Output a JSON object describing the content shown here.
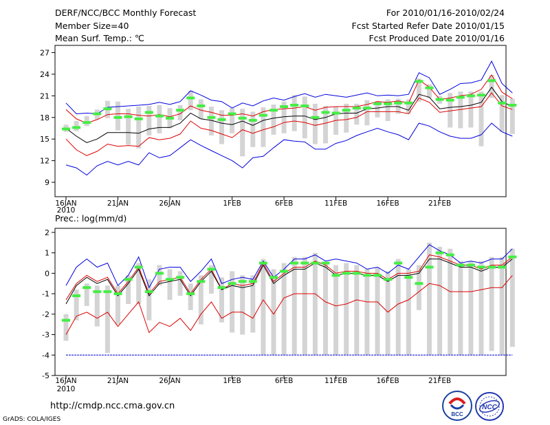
{
  "header": {
    "title": "DERF/NCC/BCC Monthly Forecast",
    "member_size": "Member Size=40",
    "variable": "Mean Surf. Temp.: ℃",
    "period": "For 2010/01/16-2010/02/24",
    "started": "Fcst Started Refer Date 2010/01/15",
    "produced": "Fcst Produced Date 2010/01/16"
  },
  "footer": {
    "url": "http://cmdp.ncc.cma.gov.cn",
    "grads": "GrADS: COLA/IGES"
  },
  "logos": {
    "bcc": "BCC",
    "ncc": "NCC"
  },
  "colors": {
    "envelope": "#0000dd",
    "percentile": "#dd0000",
    "mean": "#000000",
    "bar": "#d4d4d4",
    "marker": "#44ee44"
  },
  "chart_data": [
    {
      "type": "line",
      "title": "Mean Surf. Temp.: ℃",
      "xlabel": "",
      "ylabel": "",
      "x_ticks": [
        "16JAN",
        "21JAN",
        "26JAN",
        "1FEB",
        "6FEB",
        "11FEB",
        "16FEB",
        "21FEB"
      ],
      "x_year": "2010",
      "y_ticks": [
        9,
        12,
        15,
        18,
        21,
        24,
        27
      ],
      "ylim": [
        7,
        28
      ],
      "series": [
        {
          "name": "max",
          "values": [
            20.0,
            18.5,
            18.6,
            18.5,
            19.4,
            19.5,
            19.6,
            19.7,
            19.8,
            20.1,
            19.8,
            20.2,
            21.7,
            21.1,
            20.4,
            20.2,
            19.3,
            20.0,
            19.6,
            20.3,
            20.7,
            20.4,
            20.9,
            21.3,
            20.8,
            21.2,
            21.0,
            20.8,
            21.1,
            21.4,
            21.0,
            21.1,
            21.0,
            21.2,
            24.2,
            23.5,
            21.2,
            21.9,
            22.7,
            22.8,
            23.2,
            25.8,
            22.7,
            21.4
          ]
        },
        {
          "name": "p90",
          "values": [
            19.1,
            17.8,
            17.2,
            17.7,
            18.4,
            18.5,
            18.5,
            18.3,
            18.2,
            18.4,
            18.1,
            18.5,
            19.6,
            19.0,
            18.7,
            18.3,
            18.3,
            18.5,
            18.2,
            18.8,
            19.1,
            19.2,
            19.3,
            19.5,
            19.0,
            19.4,
            19.5,
            19.5,
            19.5,
            19.8,
            20.2,
            20.1,
            20.3,
            20.0,
            23.2,
            22.2,
            20.5,
            20.7,
            21.0,
            21.2,
            21.9,
            23.9,
            21.5,
            20.6
          ]
        },
        {
          "name": "mean",
          "values": [
            16.5,
            15.4,
            14.5,
            15.0,
            15.9,
            15.9,
            15.9,
            15.8,
            16.4,
            16.6,
            16.6,
            17.2,
            18.6,
            17.8,
            17.6,
            17.2,
            17.0,
            17.5,
            16.9,
            17.6,
            17.9,
            18.1,
            18.2,
            18.2,
            17.7,
            18.0,
            18.5,
            18.6,
            18.6,
            19.2,
            19.3,
            19.5,
            19.5,
            19.0,
            21.2,
            20.8,
            19.2,
            19.4,
            19.5,
            19.7,
            20.1,
            22.2,
            20.2,
            19.5
          ]
        },
        {
          "name": "p10",
          "values": [
            15.0,
            13.5,
            12.7,
            13.3,
            14.3,
            14.0,
            14.1,
            14.0,
            15.2,
            14.9,
            15.1,
            15.7,
            17.5,
            16.5,
            16.2,
            15.7,
            15.2,
            16.3,
            15.8,
            16.3,
            16.7,
            17.3,
            17.5,
            17.3,
            16.9,
            17.2,
            17.6,
            17.7,
            18.0,
            18.8,
            18.8,
            18.8,
            18.8,
            18.5,
            20.7,
            20.1,
            18.7,
            18.9,
            19.1,
            19.3,
            19.5,
            21.4,
            19.6,
            19.1
          ]
        },
        {
          "name": "min",
          "values": [
            11.4,
            11.0,
            10.0,
            11.3,
            11.9,
            11.4,
            11.9,
            11.4,
            13.1,
            12.4,
            12.7,
            13.8,
            14.9,
            14.1,
            13.4,
            12.7,
            12.0,
            11.0,
            12.4,
            12.6,
            13.8,
            14.9,
            14.7,
            14.6,
            13.6,
            13.6,
            14.4,
            14.8,
            15.5,
            16.0,
            16.5,
            16.0,
            15.6,
            14.9,
            17.2,
            16.8,
            16.0,
            15.4,
            15.1,
            15.1,
            15.6,
            17.2,
            16.0,
            15.4
          ]
        },
        {
          "name": "observed",
          "values": [
            16.4,
            16.6,
            17.3,
            18.5,
            19.2,
            18.0,
            18.1,
            17.8,
            18.7,
            18.2,
            17.9,
            19.0,
            20.7,
            19.6,
            18.0,
            17.7,
            18.5,
            17.9,
            17.6,
            18.3,
            19.0,
            19.5,
            19.7,
            19.6,
            18.0,
            18.7,
            18.6,
            19.0,
            19.3,
            19.3,
            19.9,
            19.9,
            20.0,
            20.0,
            23.0,
            22.1,
            20.5,
            20.4,
            20.8,
            21.0,
            21.1,
            23.1,
            20.0,
            19.7
          ]
        }
      ],
      "bars_low": [
        16.0,
        16.1,
        16.8,
        17.7,
        17.9,
        16.2,
        14.2,
        13.7,
        15.5,
        15.8,
        16.5,
        17.6,
        19.0,
        17.8,
        15.5,
        14.3,
        15.8,
        12.6,
        13.9,
        13.9,
        15.6,
        15.8,
        16.1,
        15.1,
        14.3,
        14.4,
        15.6,
        15.9,
        17.0,
        16.9,
        18.0,
        17.5,
        18.5,
        18.5,
        20.2,
        20.7,
        19.9,
        16.6,
        16.5,
        16.6,
        14.0,
        20.7,
        16.0,
        15.7
      ],
      "bars_high": [
        17.0,
        17.5,
        18.2,
        19.1,
        20.3,
        20.2,
        19.2,
        19.5,
        19.6,
        19.7,
        19.3,
        19.7,
        21.7,
        20.5,
        19.5,
        19.0,
        19.3,
        19.2,
        18.8,
        19.4,
        19.8,
        20.2,
        21.1,
        20.9,
        19.9,
        19.6,
        19.5,
        19.9,
        19.9,
        20.4,
        20.3,
        20.5,
        20.6,
        20.5,
        23.4,
        22.6,
        21.0,
        21.4,
        21.6,
        21.6,
        21.6,
        23.9,
        21.1,
        20.6
      ]
    },
    {
      "type": "line",
      "title": "Prec.: log(mm/d)",
      "xlabel": "",
      "ylabel": "",
      "x_ticks": [
        "16JAN",
        "21JAN",
        "26JAN",
        "1FEB",
        "6FEB",
        "11FEB",
        "16FEB",
        "21FEB"
      ],
      "x_year": "2010",
      "y_ticks": [
        -5,
        -4,
        -3,
        -2,
        -1,
        0,
        1,
        2
      ],
      "ylim": [
        -5,
        2.2
      ],
      "series": [
        {
          "name": "max",
          "values": [
            -0.6,
            0.3,
            0.7,
            0.3,
            0.5,
            -0.6,
            -0.1,
            0.8,
            -0.7,
            0.2,
            0.3,
            0.3,
            -0.4,
            0.1,
            0.7,
            -0.5,
            -0.3,
            -0.2,
            -0.3,
            0.6,
            -0.2,
            0.2,
            0.7,
            0.7,
            0.9,
            0.6,
            0.7,
            0.6,
            0.5,
            0.2,
            0.3,
            0.0,
            0.4,
            0.2,
            0.8,
            1.4,
            1.1,
            0.9,
            0.5,
            0.6,
            0.5,
            0.7,
            0.7,
            1.2
          ]
        },
        {
          "name": "p90",
          "values": [
            -1.3,
            -0.5,
            -0.1,
            -0.4,
            -0.2,
            -1.0,
            -0.4,
            0.3,
            -1.0,
            -0.4,
            -0.3,
            -0.2,
            -1.0,
            -0.3,
            0.2,
            -0.8,
            -0.5,
            -0.6,
            -0.5,
            0.5,
            -0.4,
            0.0,
            0.3,
            0.3,
            0.6,
            0.4,
            0.0,
            0.1,
            0.1,
            0.0,
            0.0,
            -0.3,
            0.0,
            0.0,
            0.1,
            0.9,
            0.8,
            0.6,
            0.4,
            0.4,
            0.2,
            0.4,
            0.4,
            0.8
          ]
        },
        {
          "name": "mean",
          "values": [
            -1.5,
            -0.6,
            -0.2,
            -0.5,
            -0.3,
            -1.1,
            -0.5,
            0.2,
            -1.1,
            -0.5,
            -0.4,
            -0.3,
            -1.1,
            -0.4,
            0.1,
            -0.8,
            -0.6,
            -0.7,
            -0.6,
            0.4,
            -0.5,
            -0.1,
            0.2,
            0.2,
            0.5,
            0.3,
            -0.1,
            0.0,
            0.0,
            -0.1,
            -0.1,
            -0.4,
            -0.1,
            -0.1,
            0.0,
            0.7,
            0.7,
            0.5,
            0.3,
            0.3,
            0.1,
            0.3,
            0.3,
            0.7
          ]
        },
        {
          "name": "p10",
          "values": [
            -3.0,
            -2.1,
            -1.9,
            -2.2,
            -1.9,
            -2.6,
            -2.0,
            -1.4,
            -2.9,
            -2.4,
            -2.6,
            -2.2,
            -2.8,
            -2.0,
            -1.4,
            -2.2,
            -1.9,
            -1.9,
            -2.2,
            -1.3,
            -2.0,
            -1.2,
            -1.0,
            -1.0,
            -1.0,
            -1.4,
            -1.6,
            -1.5,
            -1.3,
            -1.4,
            -1.4,
            -1.9,
            -1.5,
            -1.3,
            -0.9,
            -0.5,
            -0.6,
            -0.9,
            -0.9,
            -0.9,
            -0.8,
            -0.7,
            -0.7,
            -0.1
          ]
        },
        {
          "name": "min",
          "values": [
            -4.0,
            -4.0,
            -4.0,
            -4.0,
            -4.0,
            -4.0,
            -4.0,
            -4.0,
            -4.0,
            -4.0,
            -4.0,
            -4.0,
            -4.0,
            -4.0,
            -4.0,
            -4.0,
            -4.0,
            -4.0,
            -4.0,
            -4.0,
            -4.0,
            -4.0,
            -4.0,
            -4.0,
            -4.0,
            -4.0,
            -4.0,
            -4.0,
            -4.0,
            -4.0,
            -4.0,
            -4.0,
            -4.0,
            -4.0,
            -4.0,
            -4.0,
            -4.0,
            -4.0,
            -4.0,
            -4.0,
            -4.0,
            -4.0,
            -4.0,
            -4.0
          ]
        },
        {
          "name": "observed",
          "values": [
            -2.3,
            -1.1,
            -0.7,
            -0.9,
            -0.9,
            -1.0,
            -0.3,
            0.3,
            -0.9,
            0.0,
            -0.3,
            -0.2,
            -1.0,
            -0.4,
            0.2,
            -0.7,
            -0.5,
            -0.4,
            -0.4,
            0.5,
            -0.2,
            0.1,
            0.5,
            0.5,
            0.5,
            0.5,
            -0.1,
            0.0,
            0.0,
            -0.1,
            -0.1,
            -0.3,
            0.5,
            -0.2,
            -0.5,
            0.3,
            1.0,
            0.9,
            0.4,
            0.4,
            0.3,
            0.3,
            0.3,
            0.8
          ]
        }
      ],
      "bars_low": [
        -3.3,
        -2.3,
        -1.6,
        -2.6,
        -3.9,
        -2.5,
        -1.5,
        -1.5,
        -2.3,
        -0.6,
        -1.3,
        -1.1,
        -1.8,
        -2.5,
        -1.0,
        -2.4,
        -2.9,
        -3.0,
        -2.9,
        -4.0,
        -4.0,
        -4.0,
        -4.0,
        -4.0,
        -4.0,
        -4.0,
        -4.0,
        -4.0,
        -4.0,
        -4.0,
        -4.0,
        -4.0,
        -4.0,
        -4.0,
        -1.8,
        -4.0,
        -4.0,
        -4.0,
        -4.0,
        -4.0,
        -4.0,
        -3.8,
        -4.0,
        -3.6
      ],
      "bars_high": [
        -2.0,
        -0.8,
        -0.5,
        -0.6,
        -0.6,
        -0.6,
        -0.1,
        0.5,
        -0.3,
        0.4,
        0.2,
        0.1,
        -0.5,
        -0.1,
        0.4,
        -0.2,
        0.1,
        -0.1,
        -0.1,
        0.7,
        0.2,
        0.5,
        0.8,
        0.8,
        1.0,
        0.5,
        0.4,
        0.5,
        0.4,
        0.2,
        0.3,
        0.1,
        0.7,
        0.2,
        0.4,
        1.5,
        1.3,
        1.2,
        0.6,
        0.6,
        0.6,
        0.8,
        0.8,
        1.2
      ]
    }
  ]
}
